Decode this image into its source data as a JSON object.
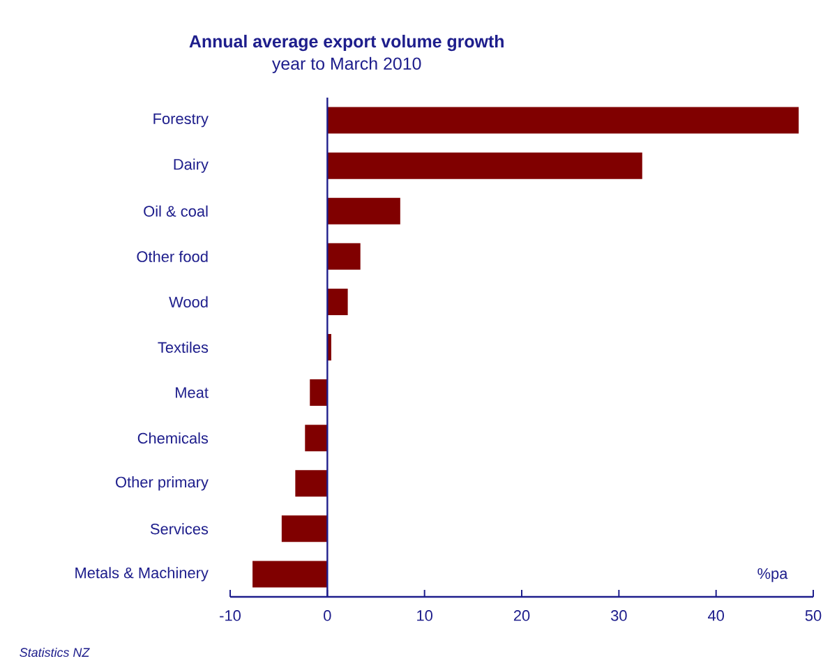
{
  "chart_data": {
    "type": "bar",
    "orientation": "horizontal",
    "title": "Annual average export volume growth",
    "subtitle": "year to March 2010",
    "xlabel": "%pa",
    "categories": [
      "Forestry",
      "Dairy",
      "Oil & coal",
      "Other food",
      "Wood",
      "Textiles",
      "Meat",
      "Chemicals",
      "Other primary",
      "Services",
      "Metals & Machinery"
    ],
    "values": [
      48.5,
      32.4,
      7.5,
      3.4,
      2.1,
      0.4,
      -1.8,
      -2.3,
      -3.3,
      -4.7,
      -7.7
    ],
    "color": "#800000",
    "xlim": [
      -10,
      50
    ],
    "xticks": [
      -10,
      0,
      10,
      20,
      30,
      40,
      50
    ],
    "ref_lines": [
      {
        "axis": "x",
        "value": 0,
        "color": "#1e1e8c"
      }
    ],
    "annotations": [
      "Statistics NZ"
    ]
  }
}
